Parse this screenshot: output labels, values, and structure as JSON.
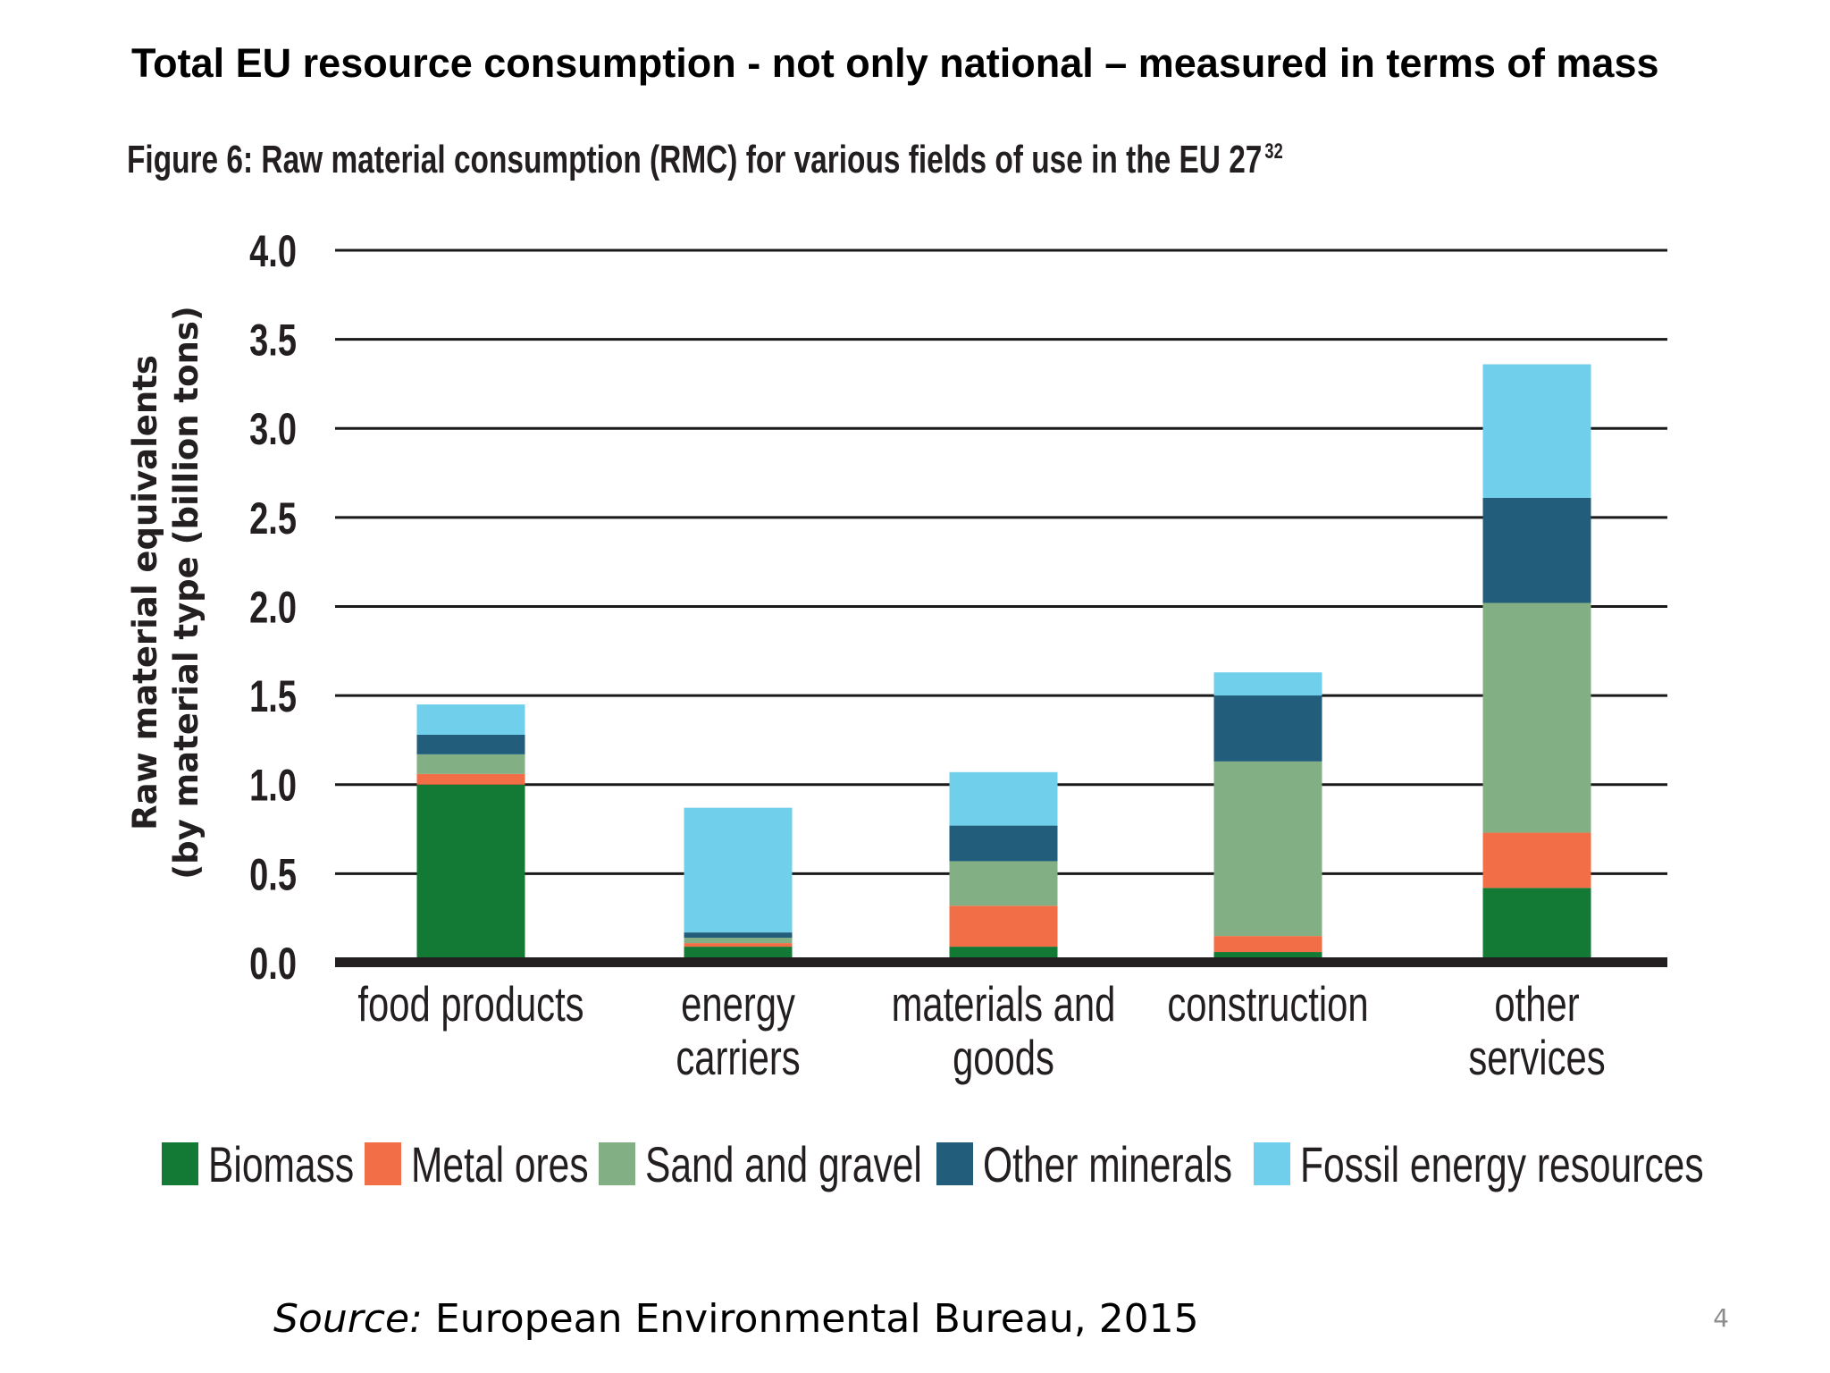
{
  "slide": {
    "title": "Total EU resource consumption - not only national – measured in terms of mass",
    "source_label": "Source:",
    "source_text": " European Environmental Bureau, 2015",
    "page_number": "4"
  },
  "chart_data": {
    "type": "bar",
    "stacked": true,
    "title": "Figure 6: Raw material consumption (RMC) for various fields of use in the EU 27",
    "title_superscript": "32",
    "ylabel_line1": "Raw material equivalents",
    "ylabel_line2": "(by material type (billion tons)",
    "xlabel": "",
    "ylim": [
      0,
      4.0
    ],
    "yticks": [
      "0.0",
      "0.5",
      "1.0",
      "1.5",
      "2.0",
      "2.5",
      "3.0",
      "3.5",
      "4.0"
    ],
    "grid": true,
    "legend_position": "bottom",
    "categories": [
      [
        "food products"
      ],
      [
        "energy",
        "carriers"
      ],
      [
        "materials and",
        "goods"
      ],
      [
        "construction"
      ],
      [
        "other",
        "services"
      ]
    ],
    "series": [
      {
        "name": "Biomass",
        "color": "#137a36",
        "values": [
          1.0,
          0.09,
          0.09,
          0.06,
          0.42
        ]
      },
      {
        "name": "Metal ores",
        "color": "#f26e47",
        "values": [
          0.06,
          0.02,
          0.23,
          0.09,
          0.31
        ]
      },
      {
        "name": "Sand and gravel",
        "color": "#82af83",
        "values": [
          0.11,
          0.03,
          0.25,
          0.98,
          1.29
        ]
      },
      {
        "name": "Other minerals",
        "color": "#225e7b",
        "values": [
          0.11,
          0.03,
          0.2,
          0.37,
          0.59
        ]
      },
      {
        "name": "Fossil energy resources",
        "color": "#70cfeb",
        "values": [
          0.17,
          0.7,
          0.3,
          0.13,
          0.75
        ]
      }
    ]
  }
}
